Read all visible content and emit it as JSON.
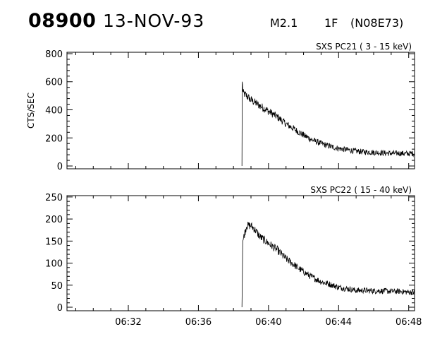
{
  "header": {
    "event_id": "08900",
    "date": "13-NOV-93",
    "flare_class": "M2.1",
    "importance": "1F",
    "location": "(N08E73)"
  },
  "chart_data": [
    {
      "type": "line",
      "title": "SXS PC21  (  3 - 15 keV)",
      "ylabel": "CTS/SEC",
      "xlim": [
        "06:28:30",
        "06:48:20"
      ],
      "ylim": [
        -20,
        810
      ],
      "yticks": [
        0,
        200,
        400,
        600,
        800
      ],
      "xticks": [
        "06:32",
        "06:36",
        "06:40",
        "06:44",
        "06:48"
      ],
      "show_x_tick_labels": false,
      "series": [
        {
          "x": [
            "06:38:29",
            "06:38:30",
            "06:38:33",
            "06:38:45",
            "06:39:00",
            "06:39:30",
            "06:40:00",
            "06:40:30",
            "06:41:00",
            "06:41:30",
            "06:42:00",
            "06:42:30",
            "06:43:00",
            "06:43:30",
            "06:44:00",
            "06:44:30",
            "06:45:00",
            "06:45:30",
            "06:46:00",
            "06:46:30",
            "06:47:00",
            "06:47:30",
            "06:48:00",
            "06:48:20"
          ],
          "y": [
            0,
            600,
            520,
            500,
            470,
            430,
            390,
            350,
            300,
            260,
            220,
            185,
            160,
            140,
            125,
            115,
            105,
            100,
            97,
            93,
            90,
            90,
            88,
            90
          ]
        }
      ]
    },
    {
      "type": "line",
      "title": "SXS PC22  ( 15 - 40 keV)",
      "ylabel": "",
      "xlim": [
        "06:28:30",
        "06:48:20"
      ],
      "ylim": [
        -8,
        253
      ],
      "yticks": [
        0,
        50,
        100,
        150,
        200,
        250
      ],
      "xticks": [
        "06:32",
        "06:36",
        "06:40",
        "06:44",
        "06:48"
      ],
      "show_x_tick_labels": true,
      "series": [
        {
          "x": [
            "06:38:29",
            "06:38:32",
            "06:38:45",
            "06:39:00",
            "06:39:15",
            "06:39:30",
            "06:40:00",
            "06:40:30",
            "06:41:00",
            "06:41:30",
            "06:42:00",
            "06:42:30",
            "06:43:00",
            "06:43:30",
            "06:44:00",
            "06:44:30",
            "06:45:00",
            "06:45:30",
            "06:46:00",
            "06:46:30",
            "06:47:00",
            "06:47:30",
            "06:48:00",
            "06:48:20"
          ],
          "y": [
            0,
            150,
            185,
            185,
            175,
            160,
            145,
            130,
            110,
            95,
            80,
            68,
            58,
            52,
            45,
            42,
            38,
            38,
            37,
            37,
            36,
            36,
            34,
            34
          ]
        }
      ]
    }
  ]
}
